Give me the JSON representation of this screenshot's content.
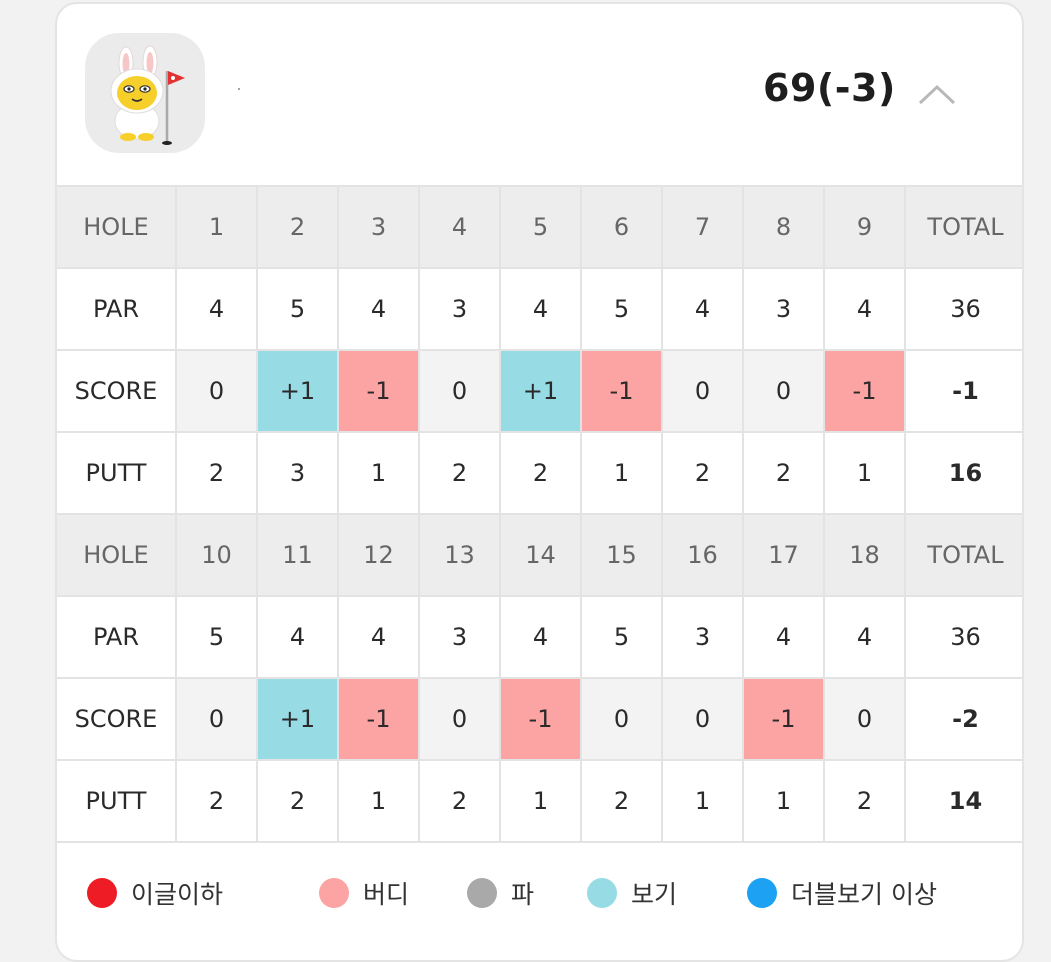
{
  "header": {
    "total_score": "69(-3)"
  },
  "front": {
    "hole_label": "HOLE",
    "holes": [
      "1",
      "2",
      "3",
      "4",
      "5",
      "6",
      "7",
      "8",
      "9"
    ],
    "total_label": "TOTAL",
    "par_label": "PAR",
    "par": [
      "4",
      "5",
      "4",
      "3",
      "4",
      "5",
      "4",
      "3",
      "4"
    ],
    "par_total": "36",
    "score_label": "SCORE",
    "score": [
      "0",
      "+1",
      "-1",
      "0",
      "+1",
      "-1",
      "0",
      "0",
      "-1"
    ],
    "score_total": "-1",
    "putt_label": "PUTT",
    "putt": [
      "2",
      "3",
      "1",
      "2",
      "2",
      "1",
      "2",
      "2",
      "1"
    ],
    "putt_total": "16"
  },
  "back": {
    "hole_label": "HOLE",
    "holes": [
      "10",
      "11",
      "12",
      "13",
      "14",
      "15",
      "16",
      "17",
      "18"
    ],
    "total_label": "TOTAL",
    "par_label": "PAR",
    "par": [
      "5",
      "4",
      "4",
      "3",
      "4",
      "5",
      "3",
      "4",
      "4"
    ],
    "par_total": "36",
    "score_label": "SCORE",
    "score": [
      "0",
      "+1",
      "-1",
      "0",
      "-1",
      "0",
      "0",
      "-1",
      "0"
    ],
    "score_total": "-2",
    "putt_label": "PUTT",
    "putt": [
      "2",
      "2",
      "1",
      "2",
      "1",
      "2",
      "1",
      "1",
      "2"
    ],
    "putt_total": "14"
  },
  "legend": [
    {
      "label": "이글이하",
      "color": "#ee1c25"
    },
    {
      "label": "버디",
      "color": "#fca3a3"
    },
    {
      "label": "파",
      "color": "#a9a9a9"
    },
    {
      "label": "보기",
      "color": "#97dce4"
    },
    {
      "label": "더블보기 이상",
      "color": "#1da1f2"
    }
  ],
  "colors": {
    "birdie": "#fca3a3",
    "bogey": "#97dce4",
    "par": "#f3f3f3",
    "header_row": "#ededed"
  },
  "icons": [
    "avatar-rabbit-golfer-icon",
    "chevron-up-icon"
  ]
}
